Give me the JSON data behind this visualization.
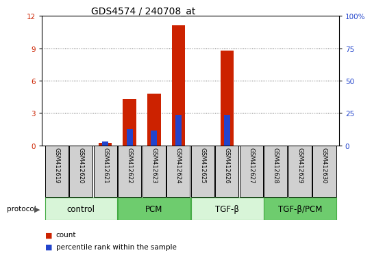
{
  "title": "GDS4574 / 240708_at",
  "samples": [
    "GSM412619",
    "GSM412620",
    "GSM412621",
    "GSM412622",
    "GSM412623",
    "GSM412624",
    "GSM412625",
    "GSM412626",
    "GSM412627",
    "GSM412628",
    "GSM412629",
    "GSM412630"
  ],
  "count_values": [
    0,
    0,
    0.2,
    4.3,
    4.8,
    11.1,
    0,
    8.8,
    0,
    0,
    0,
    0
  ],
  "percentile_values": [
    0,
    0,
    0.35,
    1.5,
    1.4,
    2.85,
    0,
    2.85,
    0,
    0,
    0,
    0
  ],
  "left_ylim": [
    0,
    12
  ],
  "right_ylim": [
    0,
    100
  ],
  "left_yticks": [
    0,
    3,
    6,
    9,
    12
  ],
  "right_yticks": [
    0,
    25,
    50,
    75,
    100
  ],
  "right_yticklabels": [
    "0",
    "25",
    "50",
    "75",
    "100%"
  ],
  "groups": [
    {
      "label": "control",
      "start": 0,
      "end": 3,
      "color": "#d8f5d8"
    },
    {
      "label": "PCM",
      "start": 3,
      "end": 6,
      "color": "#6ecc6e"
    },
    {
      "label": "TGF-β",
      "start": 6,
      "end": 9,
      "color": "#d8f5d8"
    },
    {
      "label": "TGF-β/PCM",
      "start": 9,
      "end": 12,
      "color": "#6ecc6e"
    }
  ],
  "bar_width": 0.55,
  "red_color": "#cc2200",
  "blue_color": "#2244cc",
  "bg_color": "#ffffff",
  "sample_box_color": "#d0d0d0",
  "title_fontsize": 10,
  "tick_fontsize": 7.5,
  "group_fontsize": 8.5,
  "legend_fontsize": 7.5
}
